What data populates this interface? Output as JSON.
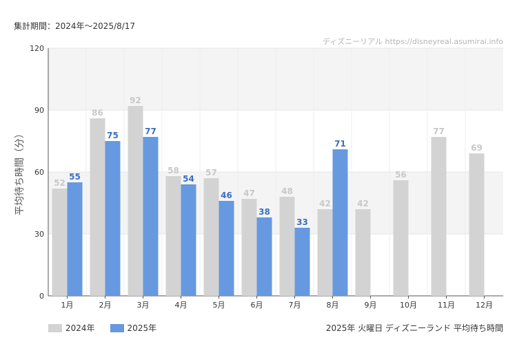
{
  "header": {
    "period": "集計期間：2024年〜2025/8/17",
    "credit": "ディズニーリアル https://disneyreal.asumirai.info"
  },
  "footer": {
    "title": "2025年 火曜日 ディズニーランド 平均待ち時間"
  },
  "colors": {
    "series_2024": "#d3d3d3",
    "series_2025": "#6699e0",
    "label_2024": "#c8c8c8",
    "label_2025": "#3a6fc4",
    "band": "#f4f4f4"
  },
  "chart_data": {
    "type": "bar",
    "ylabel": "平均待ち時間（分）",
    "ylim": [
      0,
      120
    ],
    "yticks": [
      "0",
      "30",
      "60",
      "90",
      "120"
    ],
    "categories": [
      "1月",
      "2月",
      "3月",
      "4月",
      "5月",
      "6月",
      "7月",
      "8月",
      "9月",
      "10月",
      "11月",
      "12月"
    ],
    "series": [
      {
        "name": "2024年",
        "values": [
          52,
          86,
          92,
          58,
          57,
          47,
          48,
          42,
          42,
          56,
          77,
          69
        ]
      },
      {
        "name": "2025年",
        "values": [
          55,
          75,
          77,
          54,
          46,
          38,
          33,
          71,
          null,
          null,
          null,
          null
        ]
      }
    ],
    "legend_position": "bottom-left",
    "grid": true
  }
}
